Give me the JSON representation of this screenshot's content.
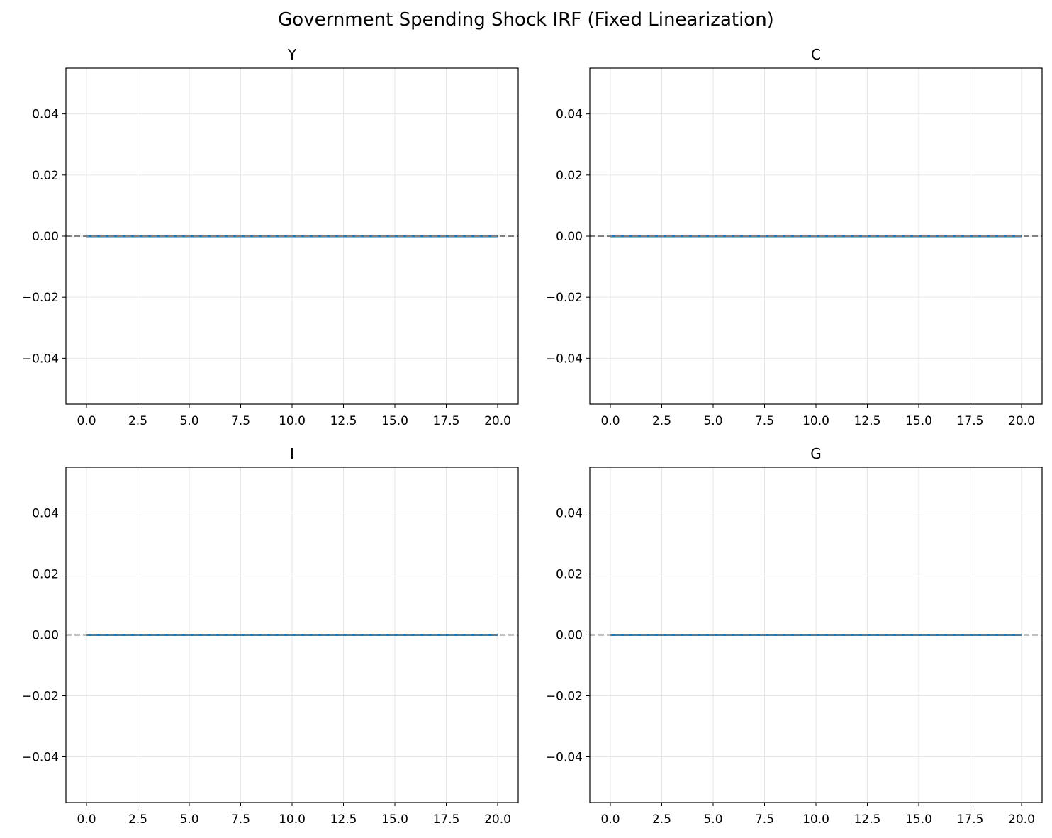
{
  "figure": {
    "title": "Government Spending Shock IRF (Fixed Linearization)"
  },
  "colors": {
    "line": "#1f77b4",
    "zero_line": "#808080",
    "grid": "#e6e6e6",
    "axes": "#000000"
  },
  "chart_data": [
    {
      "type": "line",
      "title": "Y",
      "xlabel": "",
      "ylabel": "",
      "xlim": [
        -1,
        21
      ],
      "ylim": [
        -0.055,
        0.055
      ],
      "xticks": [
        "0.0",
        "2.5",
        "5.0",
        "7.5",
        "10.0",
        "12.5",
        "15.0",
        "17.5",
        "20.0"
      ],
      "yticks": [
        "−0.04",
        "−0.02",
        "0.00",
        "0.02",
        "0.04"
      ],
      "grid": true,
      "x": [
        0,
        1,
        2,
        3,
        4,
        5,
        6,
        7,
        8,
        9,
        10,
        11,
        12,
        13,
        14,
        15,
        16,
        17,
        18,
        19,
        20
      ],
      "series": [
        {
          "values": [
            0,
            0,
            0,
            0,
            0,
            0,
            0,
            0,
            0,
            0,
            0,
            0,
            0,
            0,
            0,
            0,
            0,
            0,
            0,
            0,
            0
          ]
        }
      ],
      "reference_line": {
        "y": 0,
        "style": "dashed"
      }
    },
    {
      "type": "line",
      "title": "C",
      "xlabel": "",
      "ylabel": "",
      "xlim": [
        -1,
        21
      ],
      "ylim": [
        -0.055,
        0.055
      ],
      "xticks": [
        "0.0",
        "2.5",
        "5.0",
        "7.5",
        "10.0",
        "12.5",
        "15.0",
        "17.5",
        "20.0"
      ],
      "yticks": [
        "−0.04",
        "−0.02",
        "0.00",
        "0.02",
        "0.04"
      ],
      "grid": true,
      "x": [
        0,
        1,
        2,
        3,
        4,
        5,
        6,
        7,
        8,
        9,
        10,
        11,
        12,
        13,
        14,
        15,
        16,
        17,
        18,
        19,
        20
      ],
      "series": [
        {
          "values": [
            0,
            0,
            0,
            0,
            0,
            0,
            0,
            0,
            0,
            0,
            0,
            0,
            0,
            0,
            0,
            0,
            0,
            0,
            0,
            0,
            0
          ]
        }
      ],
      "reference_line": {
        "y": 0,
        "style": "dashed"
      }
    },
    {
      "type": "line",
      "title": "I",
      "xlabel": "",
      "ylabel": "",
      "xlim": [
        -1,
        21
      ],
      "ylim": [
        -0.055,
        0.055
      ],
      "xticks": [
        "0.0",
        "2.5",
        "5.0",
        "7.5",
        "10.0",
        "12.5",
        "15.0",
        "17.5",
        "20.0"
      ],
      "yticks": [
        "−0.04",
        "−0.02",
        "0.00",
        "0.02",
        "0.04"
      ],
      "grid": true,
      "x": [
        0,
        1,
        2,
        3,
        4,
        5,
        6,
        7,
        8,
        9,
        10,
        11,
        12,
        13,
        14,
        15,
        16,
        17,
        18,
        19,
        20
      ],
      "series": [
        {
          "values": [
            0,
            0,
            0,
            0,
            0,
            0,
            0,
            0,
            0,
            0,
            0,
            0,
            0,
            0,
            0,
            0,
            0,
            0,
            0,
            0,
            0
          ]
        }
      ],
      "reference_line": {
        "y": 0,
        "style": "dashed"
      }
    },
    {
      "type": "line",
      "title": "G",
      "xlabel": "",
      "ylabel": "",
      "xlim": [
        -1,
        21
      ],
      "ylim": [
        -0.055,
        0.055
      ],
      "xticks": [
        "0.0",
        "2.5",
        "5.0",
        "7.5",
        "10.0",
        "12.5",
        "15.0",
        "17.5",
        "20.0"
      ],
      "yticks": [
        "−0.04",
        "−0.02",
        "0.00",
        "0.02",
        "0.04"
      ],
      "grid": true,
      "x": [
        0,
        1,
        2,
        3,
        4,
        5,
        6,
        7,
        8,
        9,
        10,
        11,
        12,
        13,
        14,
        15,
        16,
        17,
        18,
        19,
        20
      ],
      "series": [
        {
          "values": [
            0,
            0,
            0,
            0,
            0,
            0,
            0,
            0,
            0,
            0,
            0,
            0,
            0,
            0,
            0,
            0,
            0,
            0,
            0,
            0,
            0
          ]
        }
      ],
      "reference_line": {
        "y": 0,
        "style": "dashed"
      }
    }
  ]
}
